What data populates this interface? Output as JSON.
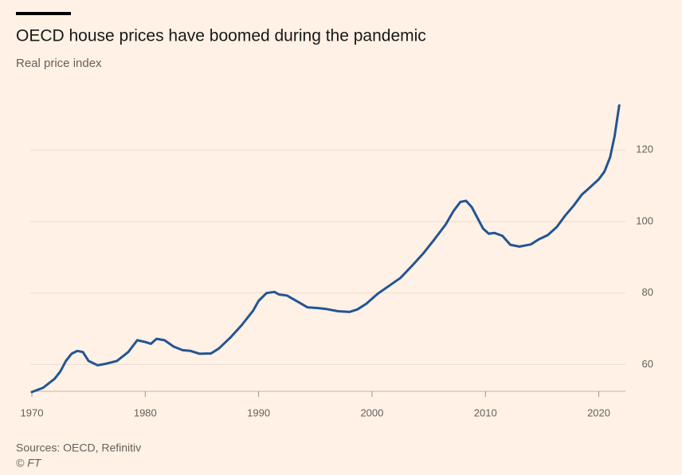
{
  "chart_data": {
    "type": "line",
    "title": "OECD house prices have boomed during the pandemic",
    "subtitle": "Real price index",
    "source": "Sources: OECD, Refinitiv",
    "credit": "© FT",
    "x": [
      1970,
      1971,
      1972,
      1972.5,
      1973,
      1973.5,
      1974,
      1974.5,
      1975,
      1975.8,
      1976.5,
      1977.5,
      1978.5,
      1979.3,
      1980,
      1980.5,
      1981,
      1981.7,
      1982.5,
      1983.3,
      1984,
      1984.8,
      1985.8,
      1986.5,
      1987.5,
      1988.5,
      1989.5,
      1990,
      1990.7,
      1991.4,
      1991.8,
      1992.5,
      1993.5,
      1994.3,
      1995.2,
      1996,
      1997,
      1998,
      1998.7,
      1999.5,
      2000.5,
      2001.5,
      2002.5,
      2003.5,
      2004.5,
      2005.5,
      2006.5,
      2007.2,
      2007.8,
      2008.3,
      2008.8,
      2009.3,
      2009.8,
      2010.3,
      2010.8,
      2011.5,
      2012.2,
      2013,
      2014,
      2014.7,
      2015.5,
      2016.3,
      2017,
      2017.8,
      2018.5,
      2019.2,
      2020,
      2020.5,
      2021,
      2021.4,
      2021.8
    ],
    "series": [
      {
        "name": "Real price index",
        "color": "#235592",
        "values": [
          52.3,
          53.5,
          56,
          58,
          61,
          63,
          63.8,
          63.5,
          61,
          59.8,
          60.2,
          61,
          63.5,
          66.8,
          66.3,
          65.8,
          67.2,
          66.8,
          65,
          64,
          63.8,
          63,
          63.1,
          64.5,
          67.5,
          71,
          75,
          77.8,
          80,
          80.3,
          79.6,
          79.3,
          77.5,
          76,
          75.8,
          75.5,
          74.9,
          74.7,
          75.4,
          77,
          79.8,
          82,
          84.2,
          87.5,
          91,
          95,
          99.2,
          103,
          105.5,
          105.8,
          104,
          101,
          98,
          96.6,
          96.8,
          96,
          93.5,
          93,
          93.6,
          95,
          96.2,
          98.5,
          101.5,
          104.5,
          107.5,
          109.5,
          111.8,
          114,
          118,
          124,
          132.5
        ]
      }
    ],
    "xlim": [
      1970,
      2022
    ],
    "xticks": [
      1970,
      1980,
      1990,
      2000,
      2010,
      2020
    ],
    "ylim": [
      52.5,
      135
    ],
    "yticks": [
      60,
      80,
      100,
      120
    ],
    "grid": true
  }
}
